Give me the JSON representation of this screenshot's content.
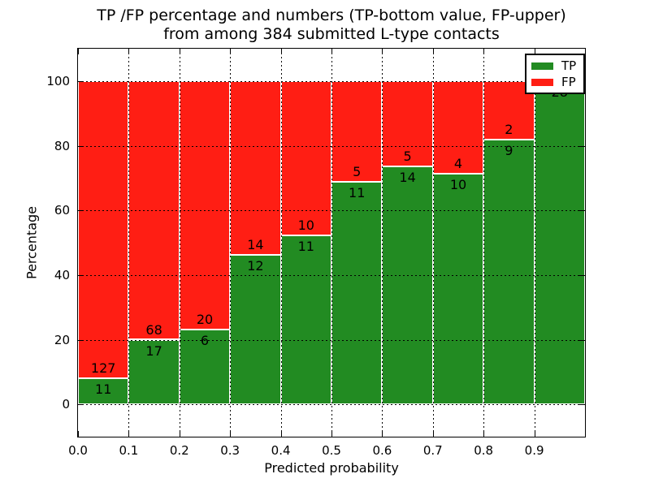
{
  "title": {
    "line1": "TP /FP percentage and numbers (TP-bottom value, FP-upper)",
    "line2": "from among 384 submitted L-type contacts"
  },
  "chart_data": {
    "type": "bar",
    "subtype": "stacked-percentage",
    "title": "TP /FP percentage and numbers (TP-bottom value, FP-upper) from among 384 submitted L-type contacts",
    "xlabel": "Predicted probability",
    "ylabel": "Percentage",
    "xlim": [
      0.0,
      1.0
    ],
    "ylim": [
      -10,
      110
    ],
    "grid": true,
    "bin_edges": [
      0.0,
      0.1,
      0.2,
      0.3,
      0.4,
      0.5,
      0.6,
      0.7,
      0.8,
      0.9,
      1.0
    ],
    "xtick_values": [
      0.0,
      0.1,
      0.2,
      0.3,
      0.4,
      0.5,
      0.6,
      0.7,
      0.8,
      0.9
    ],
    "xtick_labels": [
      "0.0",
      "0.1",
      "0.2",
      "0.3",
      "0.4",
      "0.5",
      "0.6",
      "0.7",
      "0.8",
      "0.9"
    ],
    "ytick_values": [
      0,
      20,
      40,
      60,
      80,
      100
    ],
    "ytick_labels": [
      "0",
      "20",
      "40",
      "60",
      "80",
      "100"
    ],
    "series": [
      {
        "name": "TP",
        "color": "#228B22",
        "values": [
          11,
          17,
          6,
          12,
          11,
          11,
          14,
          10,
          9,
          28
        ]
      },
      {
        "name": "FP",
        "color": "#FF1E14",
        "values": [
          127,
          68,
          20,
          14,
          10,
          5,
          5,
          4,
          2,
          0
        ]
      }
    ],
    "tp_percent": [
      8.0,
      20.0,
      23.1,
      46.2,
      52.4,
      68.8,
      73.7,
      71.4,
      81.8,
      100.0
    ],
    "legend": {
      "position": "upper right",
      "entries": [
        {
          "label": "TP",
          "color": "#228B22"
        },
        {
          "label": "FP",
          "color": "#FF1E14"
        }
      ]
    }
  }
}
